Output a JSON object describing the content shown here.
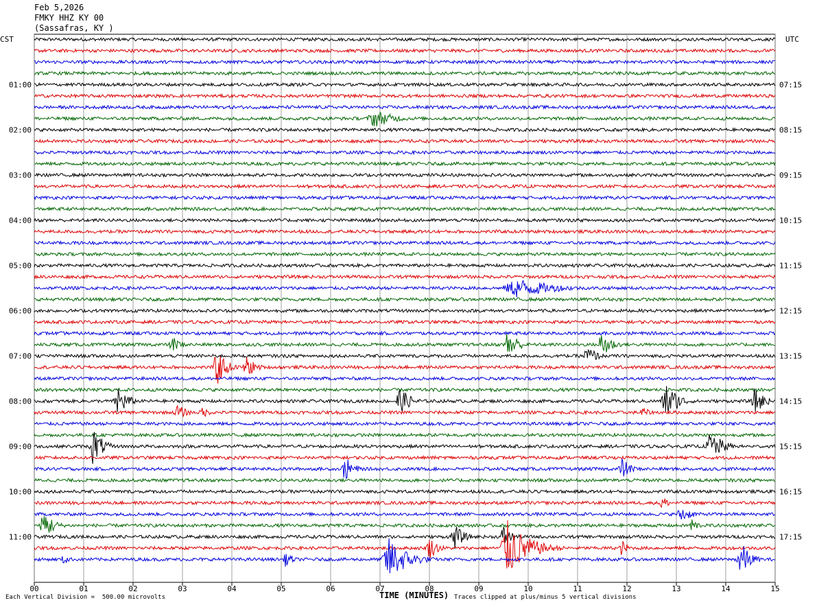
{
  "header": {
    "date": "Feb 5,2026",
    "station": "FMKY HHZ KY 00",
    "location": "(Sassafras, KY )"
  },
  "footer": {
    "scale_note": "Each Vertical Division =  500.00 microvolts",
    "xlabel": "TIME (MINUTES)",
    "clip_note": "Traces clipped at plus/minus 5 vertical divisions"
  },
  "chart_data": {
    "type": "line",
    "title": "",
    "left_axis_label": "CST",
    "right_axis_label": "UTC",
    "xlabel": "TIME (MINUTES)",
    "x_ticks": [
      "00",
      "01",
      "02",
      "03",
      "04",
      "05",
      "06",
      "07",
      "08",
      "09",
      "10",
      "11",
      "12",
      "13",
      "14",
      "15"
    ],
    "xlim": [
      0,
      15
    ],
    "rows_per_hour": 4,
    "row_minutes": 15,
    "row_count": 47,
    "row_colors": [
      "#000000",
      "#dd0000",
      "#0000dd",
      "#006600"
    ],
    "left_time_labels": [
      "01:00",
      "02:00",
      "03:00",
      "04:00",
      "05:00",
      "06:00",
      "07:00",
      "08:00",
      "09:00",
      "10:00",
      "11:00"
    ],
    "right_time_labels": [
      "07:15",
      "08:15",
      "09:15",
      "10:15",
      "11:15",
      "12:15",
      "13:15",
      "14:15",
      "15:15",
      "16:15",
      "17:15"
    ],
    "grid": true,
    "events": [
      {
        "row": 7,
        "minute": 6.9,
        "amplitude": 1.6,
        "duration": 0.9
      },
      {
        "row": 22,
        "minute": 9.8,
        "amplitude": 1.8,
        "duration": 1.6
      },
      {
        "row": 27,
        "minute": 2.8,
        "amplitude": 1.5,
        "duration": 0.4
      },
      {
        "row": 27,
        "minute": 9.6,
        "amplitude": 3.2,
        "duration": 0.4
      },
      {
        "row": 27,
        "minute": 11.5,
        "amplitude": 3.0,
        "duration": 0.4
      },
      {
        "row": 28,
        "minute": 11.2,
        "amplitude": 2.0,
        "duration": 0.4
      },
      {
        "row": 29,
        "minute": 3.7,
        "amplitude": 3.5,
        "duration": 0.4
      },
      {
        "row": 29,
        "minute": 4.3,
        "amplitude": 2.0,
        "duration": 0.4
      },
      {
        "row": 32,
        "minute": 1.7,
        "amplitude": 3.0,
        "duration": 0.4
      },
      {
        "row": 32,
        "minute": 7.4,
        "amplitude": 2.5,
        "duration": 0.5
      },
      {
        "row": 32,
        "minute": 12.8,
        "amplitude": 3.5,
        "duration": 0.5
      },
      {
        "row": 32,
        "minute": 14.6,
        "amplitude": 2.5,
        "duration": 0.4
      },
      {
        "row": 33,
        "minute": 2.9,
        "amplitude": 1.5,
        "duration": 0.4
      },
      {
        "row": 33,
        "minute": 3.4,
        "amplitude": 1.2,
        "duration": 0.3
      },
      {
        "row": 33,
        "minute": 12.3,
        "amplitude": 1.0,
        "duration": 0.4
      },
      {
        "row": 36,
        "minute": 1.2,
        "amplitude": 3.5,
        "duration": 0.4
      },
      {
        "row": 36,
        "minute": 13.7,
        "amplitude": 3.0,
        "duration": 0.5
      },
      {
        "row": 38,
        "minute": 6.3,
        "amplitude": 2.2,
        "duration": 0.4
      },
      {
        "row": 38,
        "minute": 11.9,
        "amplitude": 2.0,
        "duration": 0.4
      },
      {
        "row": 41,
        "minute": 12.7,
        "amplitude": 1.5,
        "duration": 0.3
      },
      {
        "row": 42,
        "minute": 13.1,
        "amplitude": 1.5,
        "duration": 0.5
      },
      {
        "row": 43,
        "minute": 0.2,
        "amplitude": 3.0,
        "duration": 0.4
      },
      {
        "row": 43,
        "minute": 13.3,
        "amplitude": 1.5,
        "duration": 0.3
      },
      {
        "row": 44,
        "minute": 8.5,
        "amplitude": 2.5,
        "duration": 0.4
      },
      {
        "row": 44,
        "minute": 9.5,
        "amplitude": 2.0,
        "duration": 0.4
      },
      {
        "row": 45,
        "minute": 8.0,
        "amplitude": 2.0,
        "duration": 0.4
      },
      {
        "row": 45,
        "minute": 9.6,
        "amplitude": 5.0,
        "duration": 0.9
      },
      {
        "row": 45,
        "minute": 11.9,
        "amplitude": 1.5,
        "duration": 0.3
      },
      {
        "row": 46,
        "minute": 0.6,
        "amplitude": 1.0,
        "duration": 0.3
      },
      {
        "row": 46,
        "minute": 7.2,
        "amplitude": 4.0,
        "duration": 0.8
      },
      {
        "row": 46,
        "minute": 5.1,
        "amplitude": 1.5,
        "duration": 0.3
      },
      {
        "row": 46,
        "minute": 14.3,
        "amplitude": 3.5,
        "duration": 0.4
      }
    ]
  }
}
